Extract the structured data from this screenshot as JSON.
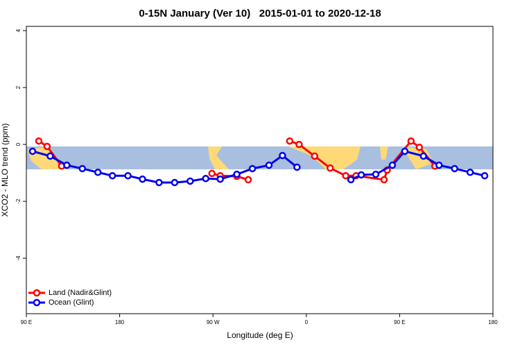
{
  "chart_data": {
    "type": "line",
    "title": "0-15N January (Ver 10)   2015-01-01 to 2020-12-18",
    "x_label": "Longitude (deg E)",
    "y_label": "XCO2 - MLO trend (ppm)",
    "xlim": [
      90,
      540
    ],
    "ylim": [
      -5.95,
      4.15
    ],
    "xticks": [
      {
        "value": 90,
        "label": "90 E"
      },
      180,
      {
        "value": 270,
        "label": "90 W"
      },
      {
        "value": 360,
        "label": "0"
      },
      {
        "value": 450,
        "label": "90 E"
      },
      {
        "value": 540,
        "label": "180"
      }
    ],
    "yticks": [
      -4,
      -2,
      0,
      2,
      4
    ],
    "legend": "bottom-left",
    "series": [
      {
        "name": "Land (Nadir&Glint)",
        "color": "#ff0000",
        "x": [
          102,
          110,
          124,
          200,
          269,
          277,
          293,
          304,
          325,
          344,
          353,
          368,
          383,
          398,
          408,
          435,
          438,
          461,
          469,
          484
        ],
        "values": [
          0.12,
          -0.07,
          -0.76,
          null,
          -1.02,
          -1.1,
          -1.12,
          -1.24,
          null,
          0.12,
          0,
          -0.41,
          -0.83,
          -1.1,
          -1.1,
          -1.24,
          -0.9,
          0.12,
          -0.1,
          -0.76
        ]
      },
      {
        "name": "Ocean (Glint)",
        "color": "#0000ee",
        "x": [
          96,
          113,
          129,
          144,
          159,
          173,
          188,
          202,
          218,
          233,
          248,
          263,
          277,
          293,
          308,
          324,
          337,
          351,
          377,
          403,
          413,
          427,
          443,
          455,
          473,
          488,
          503,
          518,
          532
        ],
        "values": [
          -0.24,
          -0.41,
          -0.73,
          -0.85,
          -0.98,
          -1.1,
          -1.1,
          -1.22,
          -1.34,
          -1.34,
          -1.29,
          -1.2,
          -1.22,
          -1.05,
          -0.85,
          -0.73,
          -0.39,
          -0.8,
          null,
          -1.24,
          -1.07,
          -1.05,
          -0.73,
          -0.24,
          -0.41,
          -0.73,
          -0.85,
          -0.98,
          -1.1
        ]
      }
    ]
  }
}
